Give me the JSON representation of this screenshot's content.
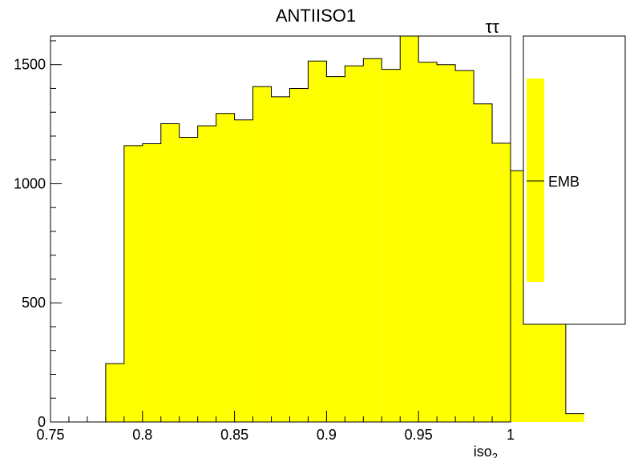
{
  "chart_data": {
    "type": "bar",
    "title": "ANTIISO1",
    "corner_label": "ττ",
    "xlabel": "iso",
    "xlabel_sub": "2",
    "ylabel": "",
    "xlim": [
      0.75,
      1.0
    ],
    "ylim": [
      0,
      1620
    ],
    "x_ticks": [
      0.75,
      0.8,
      0.85,
      0.9,
      0.95,
      1.0
    ],
    "x_tick_labels": [
      "0.75",
      "0.8",
      "0.85",
      "0.9",
      "0.95",
      "1"
    ],
    "y_ticks": [
      0,
      500,
      1000,
      1500
    ],
    "y_tick_labels": [
      "0",
      "500",
      "1000",
      "1500"
    ],
    "grid": false,
    "legend_position": "right",
    "bin_width": 0.01,
    "bin_edges_start": 0.75,
    "series": [
      {
        "name": "EMB",
        "color": "#ffff00",
        "values": [
          0,
          0,
          0,
          245,
          1160,
          1168,
          1252,
          1195,
          1243,
          1295,
          1268,
          1408,
          1365,
          1400,
          1515,
          1450,
          1495,
          1525,
          1480,
          1620,
          1510,
          1500,
          1475,
          1335,
          1170,
          1055,
          795,
          430,
          35
        ]
      }
    ]
  }
}
